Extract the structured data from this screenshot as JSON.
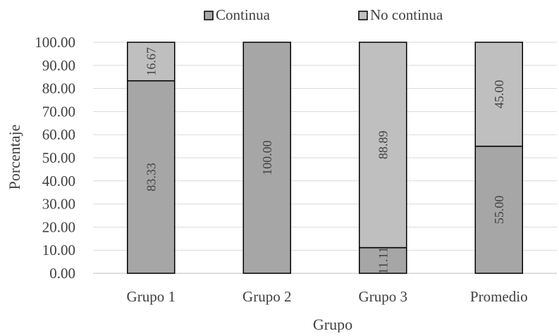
{
  "chart_data": {
    "type": "bar",
    "stacked": true,
    "categories": [
      "Grupo 1",
      "Grupo 2",
      "Grupo 3",
      "Promedio"
    ],
    "series": [
      {
        "name": "Continua",
        "values": [
          83.33,
          100.0,
          11.11,
          55.0
        ],
        "labels": [
          "83.33",
          "100.00",
          "11.11",
          "55.00"
        ],
        "color": "#a6a6a6"
      },
      {
        "name": "No continua",
        "values": [
          16.67,
          0,
          88.89,
          45.0
        ],
        "labels": [
          "16.67",
          "",
          "88.89",
          "45.00"
        ],
        "color": "#bfbfbf"
      }
    ],
    "yticks": [
      "0.00",
      "10.00",
      "20.00",
      "30.00",
      "40.00",
      "50.00",
      "60.00",
      "70.00",
      "80.00",
      "90.00",
      "100.00"
    ],
    "xlabel": "Grupo",
    "ylabel": "Porcentaje",
    "ylim": [
      0,
      100
    ],
    "grid": true,
    "legend_position": "top"
  },
  "colors": {
    "grid": "#d9d9d9",
    "bar_stroke": "#000000",
    "text": "#404040"
  }
}
